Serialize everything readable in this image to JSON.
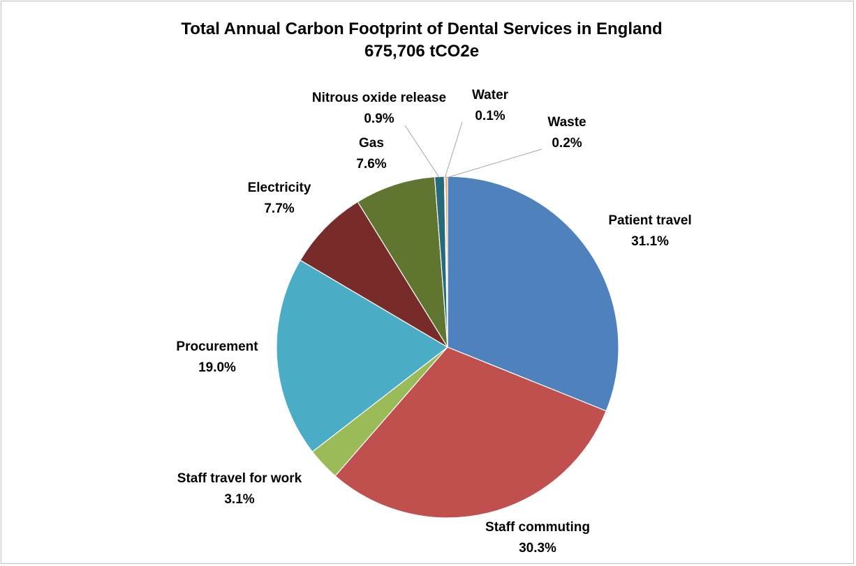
{
  "chart_data": {
    "type": "pie",
    "title": "Total Annual Carbon Footprint of Dental Services in England",
    "subtitle": "675,706 tCO2e",
    "slices": [
      {
        "label": "Patient travel",
        "value": 31.1,
        "value_label": "31.1%",
        "color": "#4F81BD"
      },
      {
        "label": "Staff commuting",
        "value": 30.3,
        "value_label": "30.3%",
        "color": "#C0504D"
      },
      {
        "label": "Staff travel for work",
        "value": 3.1,
        "value_label": "3.1%",
        "color": "#9BBB59"
      },
      {
        "label": "Procurement",
        "value": 19.0,
        "value_label": "19.0%",
        "color": "#4BACC6"
      },
      {
        "label": "Electricity",
        "value": 7.7,
        "value_label": "7.7%",
        "color": "#772C2A"
      },
      {
        "label": "Gas",
        "value": 7.6,
        "value_label": "7.6%",
        "color": "#5F7530"
      },
      {
        "label": "Nitrous oxide release",
        "value": 0.9,
        "value_label": "0.9%",
        "color": "#276A7C"
      },
      {
        "label": "Water",
        "value": 0.1,
        "value_label": "0.1%",
        "color": "#8064A2"
      },
      {
        "label": "Waste",
        "value": 0.2,
        "value_label": "0.2%",
        "color": "#F79646"
      }
    ],
    "start_angle": "12 o'clock",
    "direction": "clockwise",
    "legend": "none"
  }
}
